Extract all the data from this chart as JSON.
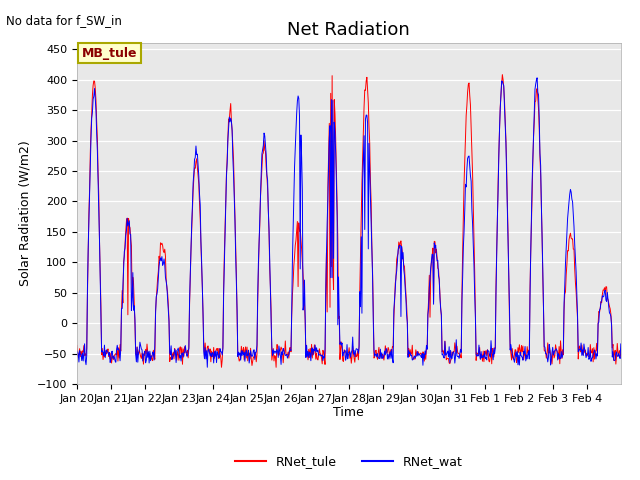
{
  "title": "Net Radiation",
  "top_left_text": "No data for f_SW_in",
  "ylabel": "Solar Radiation (W/m2)",
  "xlabel": "Time",
  "ylim": [
    -100,
    460
  ],
  "yticks": [
    -100,
    -50,
    0,
    50,
    100,
    150,
    200,
    250,
    300,
    350,
    400,
    450
  ],
  "plot_bg": "#e8e8e8",
  "fig_bg": "#ffffff",
  "legend_station": "MB_tule",
  "legend_station_bg": "#ffffcc",
  "legend_station_border": "#aaa800",
  "color_tule": "#ff0000",
  "color_wat": "#0000ff",
  "label_tule": "RNet_tule",
  "label_wat": "RNet_wat",
  "title_fontsize": 13,
  "label_fontsize": 9,
  "tick_fontsize": 8,
  "n_days": 16,
  "linewidth": 0.7,
  "xtick_labels": [
    "Jan 20",
    "Jan 21",
    "Jan 22",
    "Jan 23",
    "Jan 24",
    "Jan 25",
    "Jan 26",
    "Jan 27",
    "Jan 28",
    "Jan 29",
    "Jan 30",
    "Jan 31",
    "Feb 1",
    "Feb 2",
    "Feb 3",
    "Feb 4"
  ],
  "tule_peaks": [
    400,
    175,
    130,
    270,
    350,
    290,
    160,
    405,
    400,
    130,
    130,
    390,
    405,
    380,
    145,
    55
  ],
  "wat_peaks": [
    380,
    165,
    110,
    285,
    340,
    305,
    365,
    370,
    350,
    128,
    130,
    270,
    400,
    400,
    220,
    45
  ],
  "night_mean": -50,
  "night_std": 8
}
